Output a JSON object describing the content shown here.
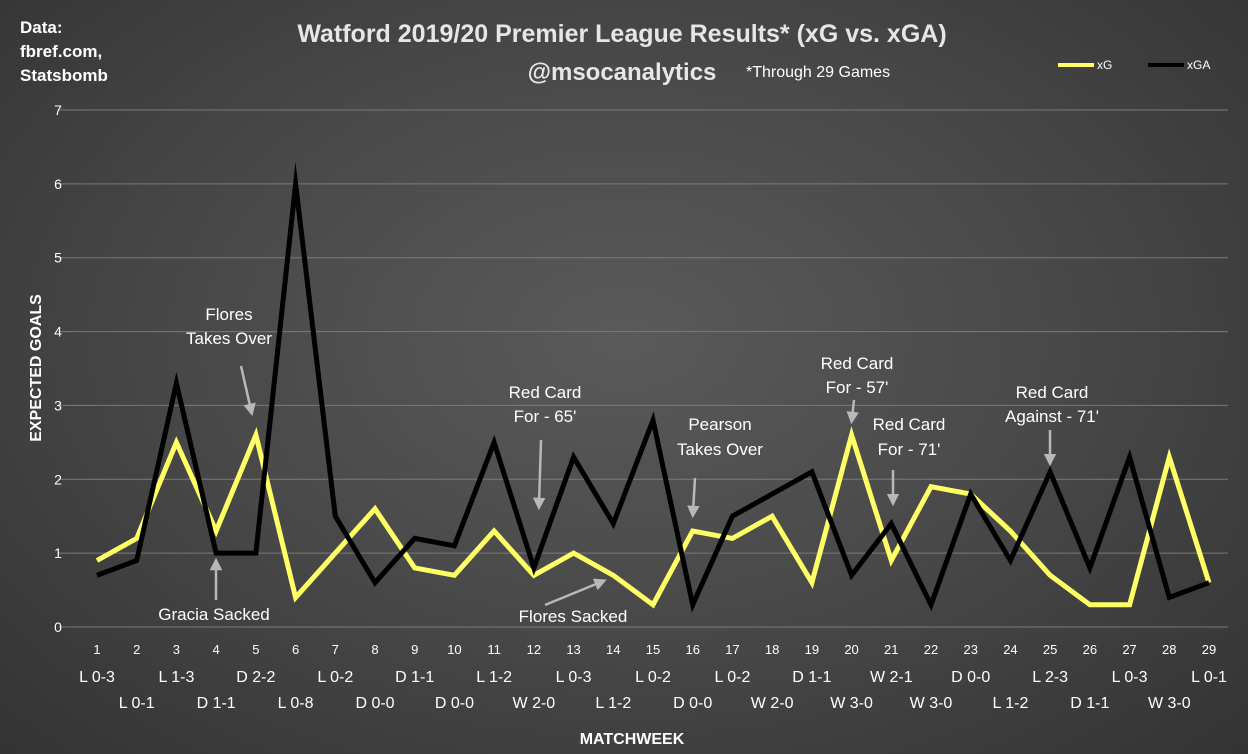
{
  "source_lines": [
    "Data:",
    "fbref.com,",
    "Statsbomb"
  ],
  "chart_data": {
    "type": "line",
    "title": "Watford 2019/20 Premier League Results* (xG vs. xGA)",
    "subtitle": "@msocanalytics",
    "note": "*Through 29 Games",
    "xlabel": "MATCHWEEK",
    "ylabel": "EXPECTED GOALS",
    "ylim": [
      0,
      7
    ],
    "yticks": [
      0,
      1,
      2,
      3,
      4,
      5,
      6,
      7
    ],
    "grid": true,
    "legend_position": "top-right",
    "x": [
      1,
      2,
      3,
      4,
      5,
      6,
      7,
      8,
      9,
      10,
      11,
      12,
      13,
      14,
      15,
      16,
      17,
      18,
      19,
      20,
      21,
      22,
      23,
      24,
      25,
      26,
      27,
      28,
      29
    ],
    "results": [
      "L 0-3",
      "L 0-1",
      "L 1-3",
      "D 1-1",
      "D 2-2",
      "L 0-8",
      "L 0-2",
      "D 0-0",
      "D 1-1",
      "D 0-0",
      "L 1-2",
      "W 2-0",
      "L 0-3",
      "L 1-2",
      "L 0-2",
      "D 0-0",
      "L 0-2",
      "W 2-0",
      "D 1-1",
      "W 3-0",
      "W 2-1",
      "W 3-0",
      "D 0-0",
      "L 1-2",
      "L 2-3",
      "D 1-1",
      "L 0-3",
      "W 3-0",
      "L 0-1"
    ],
    "series": [
      {
        "name": "xG",
        "color": "#ffff66",
        "values": [
          0.9,
          1.2,
          2.5,
          1.3,
          2.6,
          0.4,
          1.0,
          1.6,
          0.8,
          0.7,
          1.3,
          0.7,
          1.0,
          0.7,
          0.3,
          1.3,
          1.2,
          1.5,
          0.6,
          2.6,
          0.9,
          1.9,
          1.8,
          1.3,
          0.7,
          0.3,
          0.3,
          2.3,
          0.6
        ]
      },
      {
        "name": "xGA",
        "color": "#000000",
        "values": [
          0.7,
          0.9,
          3.3,
          1.0,
          1.0,
          6.0,
          1.5,
          0.6,
          1.2,
          1.1,
          2.5,
          0.8,
          2.3,
          1.4,
          2.8,
          0.3,
          1.5,
          1.8,
          2.1,
          0.7,
          1.4,
          0.3,
          1.8,
          0.9,
          2.1,
          0.8,
          2.3,
          0.4,
          0.6
        ]
      }
    ],
    "annotations": [
      {
        "lines": [
          "Flores",
          "Takes Over"
        ],
        "x": 5
      },
      {
        "lines": [
          "Gracia Sacked"
        ],
        "x": 4
      },
      {
        "lines": [
          "Red Card",
          "For - 65'"
        ],
        "x": 12
      },
      {
        "lines": [
          "Flores Sacked"
        ],
        "x": 14
      },
      {
        "lines": [
          "Pearson",
          "Takes Over"
        ],
        "x": 16
      },
      {
        "lines": [
          "Red Card",
          "For - 57'"
        ],
        "x": 20
      },
      {
        "lines": [
          "Red Card",
          "For - 71'"
        ],
        "x": 21
      },
      {
        "lines": [
          "Red Card",
          "Against - 71'"
        ],
        "x": 25
      }
    ]
  }
}
